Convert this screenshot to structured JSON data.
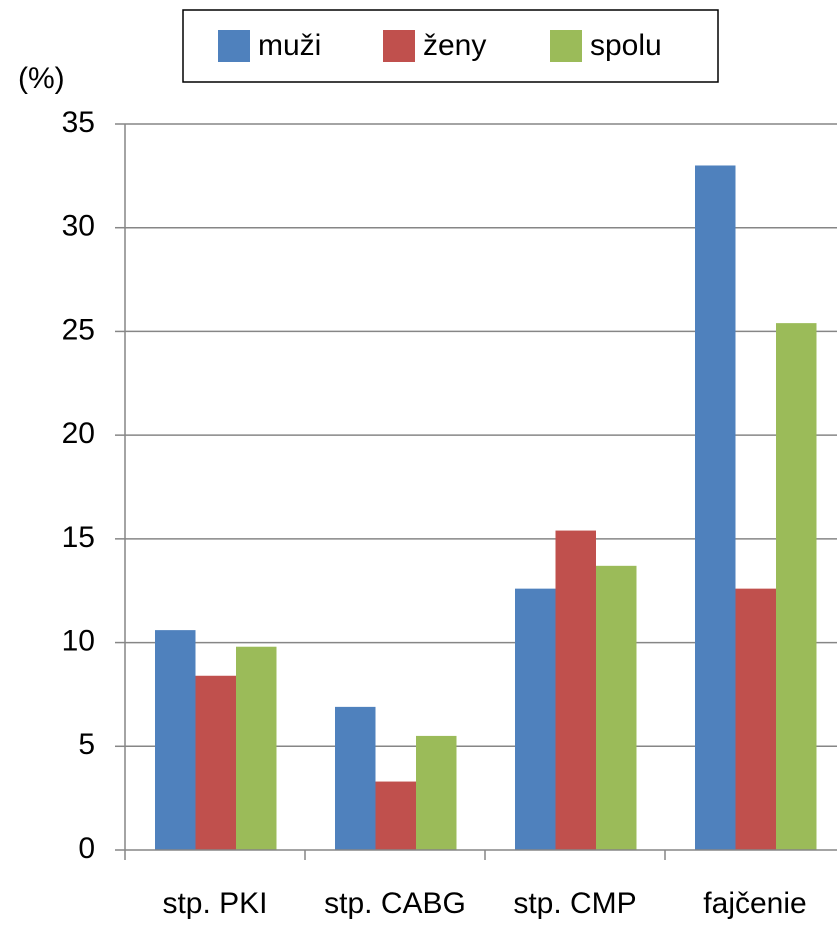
{
  "chart_data": {
    "type": "bar",
    "y_label": "(%)",
    "categories": [
      "stp. PKI",
      "stp. CABG",
      "stp. CMP",
      "fajčenie"
    ],
    "series": [
      {
        "name": "muži",
        "color": "#4f81bd",
        "values": [
          10.6,
          6.9,
          12.6,
          33.0
        ]
      },
      {
        "name": "ženy",
        "color": "#c0504d",
        "values": [
          8.4,
          3.3,
          15.4,
          12.6
        ]
      },
      {
        "name": "spolu",
        "color": "#9bbb59",
        "values": [
          9.8,
          5.5,
          13.7,
          25.4
        ]
      }
    ],
    "ylim": [
      0,
      35
    ],
    "yticks": [
      0,
      5,
      10,
      15,
      20,
      25,
      30,
      35
    ],
    "grid": true,
    "legend": "top"
  }
}
